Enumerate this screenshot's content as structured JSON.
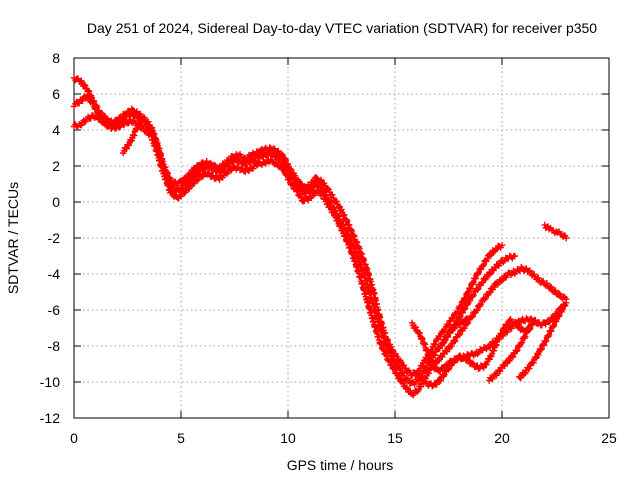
{
  "chart_data": {
    "type": "scatter",
    "title": "Day 251 of 2024, Sidereal Day-to-day VTEC variation (SDTVAR) for receiver p350",
    "xlabel": "GPS time / hours",
    "ylabel": "SDTVAR / TECUs",
    "xlim": [
      0,
      25
    ],
    "ylim": [
      -12,
      8
    ],
    "xticks": [
      0,
      5,
      10,
      15,
      20,
      25
    ],
    "yticks": [
      -12,
      -10,
      -8,
      -6,
      -4,
      -2,
      0,
      2,
      4,
      6,
      8
    ],
    "grid": true,
    "marker": "plus",
    "color": "#ff0000",
    "series": [
      {
        "x": [
          0.0,
          0.3,
          0.6,
          0.9,
          1.2,
          1.5,
          1.8,
          2.1,
          2.4,
          2.7,
          3.0,
          3.3,
          3.6,
          3.9,
          4.2,
          4.5,
          4.8,
          5.0,
          5.3,
          5.6,
          5.9,
          6.2,
          6.5,
          6.8,
          7.1,
          7.4,
          7.7,
          8.0,
          8.3,
          8.6,
          8.9,
          9.2,
          9.5,
          9.8,
          10.1,
          10.4,
          10.7,
          11.0,
          11.3,
          11.6,
          11.9,
          12.2,
          12.5,
          12.8,
          13.1,
          13.4,
          13.7,
          14.0,
          14.3,
          14.6,
          14.9,
          15.2,
          15.5,
          15.8,
          16.1,
          16.4,
          16.7,
          17.0,
          17.3,
          17.6,
          17.9,
          18.2,
          18.5,
          18.8,
          19.1,
          19.4,
          19.7,
          20.0
        ],
        "y": [
          6.9,
          6.7,
          6.3,
          5.6,
          5.0,
          4.6,
          4.4,
          4.6,
          4.9,
          5.1,
          4.9,
          4.6,
          4.2,
          3.2,
          2.0,
          1.2,
          1.0,
          1.1,
          1.4,
          1.8,
          2.1,
          2.2,
          2.0,
          1.9,
          2.2,
          2.5,
          2.6,
          2.4,
          2.6,
          2.8,
          2.9,
          3.0,
          2.8,
          2.5,
          1.8,
          1.3,
          0.8,
          0.9,
          1.3,
          1.1,
          0.6,
          0.1,
          -0.5,
          -1.2,
          -2.0,
          -2.8,
          -3.8,
          -5.0,
          -6.5,
          -7.6,
          -8.3,
          -8.8,
          -9.3,
          -9.6,
          -9.4,
          -8.8,
          -8.2,
          -7.6,
          -7.1,
          -6.6,
          -6.1,
          -5.5,
          -4.8,
          -4.1,
          -3.5,
          -3.0,
          -2.6,
          -2.4
        ]
      },
      {
        "x": [
          0.0,
          0.3,
          0.6,
          0.9,
          1.2,
          1.5,
          1.8,
          2.1,
          2.4,
          2.7,
          3.0,
          3.3,
          3.6,
          3.9,
          4.2,
          4.5,
          4.8,
          5.0,
          5.3,
          5.6,
          5.9,
          6.2,
          6.5,
          6.8,
          7.1,
          7.4,
          7.7,
          8.0,
          8.3,
          8.6,
          8.9,
          9.2,
          9.5,
          9.8,
          10.1,
          10.4,
          10.7,
          11.0,
          11.3,
          11.6,
          11.9,
          12.2,
          12.5,
          12.8,
          13.1,
          13.4,
          13.7,
          14.0,
          14.3,
          14.6,
          14.9,
          15.2,
          15.5,
          15.8,
          16.1,
          16.4,
          16.7,
          17.0,
          17.3,
          17.6,
          17.9,
          18.2,
          18.5,
          18.8,
          19.1,
          19.4,
          19.7,
          20.0,
          20.3,
          20.6
        ],
        "y": [
          5.4,
          5.6,
          5.9,
          5.4,
          4.8,
          4.5,
          4.3,
          4.5,
          4.8,
          4.9,
          4.7,
          4.4,
          4.0,
          3.0,
          1.8,
          0.9,
          0.6,
          0.8,
          1.1,
          1.5,
          1.8,
          2.0,
          1.8,
          1.7,
          2.0,
          2.3,
          2.3,
          2.1,
          2.3,
          2.5,
          2.6,
          2.7,
          2.5,
          2.2,
          1.5,
          1.0,
          0.5,
          0.6,
          1.0,
          0.7,
          0.1,
          -0.5,
          -1.1,
          -1.8,
          -2.6,
          -3.5,
          -4.6,
          -5.8,
          -7.0,
          -8.0,
          -8.7,
          -9.3,
          -9.8,
          -10.1,
          -9.9,
          -9.3,
          -8.7,
          -8.2,
          -7.7,
          -7.2,
          -6.6,
          -6.0,
          -5.4,
          -4.9,
          -4.4,
          -4.0,
          -3.6,
          -3.3,
          -3.1,
          -3.0
        ]
      },
      {
        "x": [
          0.0,
          0.3,
          0.6,
          0.9,
          1.2,
          1.5,
          1.8,
          2.1,
          2.4,
          2.7,
          3.0,
          3.3,
          3.6,
          3.9,
          4.2,
          4.5,
          4.8,
          5.0,
          5.3,
          5.6,
          5.9,
          6.2,
          6.5,
          6.8,
          7.1,
          7.4,
          7.7,
          8.0,
          8.3,
          8.6,
          8.9,
          9.2,
          9.5,
          9.8,
          10.1,
          10.4,
          10.7,
          11.0,
          11.3,
          11.6,
          11.9,
          12.2,
          12.5,
          12.8,
          13.1,
          13.4,
          13.7,
          14.0,
          14.3,
          14.6,
          14.9,
          15.2,
          15.5,
          15.8,
          16.1,
          16.4,
          16.7,
          17.0,
          17.3,
          17.6,
          17.9,
          18.2,
          18.5,
          18.8,
          19.1,
          19.4,
          19.7,
          20.0,
          20.3,
          20.6,
          20.9,
          21.2,
          21.5,
          21.8,
          22.1,
          22.4,
          22.7,
          23.0
        ],
        "y": [
          4.2,
          4.3,
          4.6,
          4.8,
          4.6,
          4.3,
          4.1,
          4.2,
          4.4,
          4.5,
          4.3,
          4.0,
          3.7,
          2.7,
          1.5,
          0.6,
          0.2,
          0.4,
          0.7,
          1.1,
          1.4,
          1.6,
          1.4,
          1.3,
          1.6,
          1.9,
          1.9,
          1.7,
          1.9,
          2.1,
          2.2,
          2.3,
          2.1,
          1.8,
          1.1,
          0.6,
          0.1,
          0.2,
          0.6,
          0.4,
          -0.2,
          -0.8,
          -1.5,
          -2.3,
          -3.2,
          -4.3,
          -5.5,
          -6.7,
          -7.8,
          -8.6,
          -9.2,
          -9.8,
          -10.3,
          -10.7,
          -10.4,
          -9.8,
          -9.2,
          -8.8,
          -8.4,
          -8.0,
          -7.5,
          -7.0,
          -6.5,
          -6.0,
          -5.5,
          -5.0,
          -4.6,
          -4.3,
          -4.0,
          -3.9,
          -3.7,
          -3.8,
          -4.1,
          -4.4,
          -4.6,
          -4.9,
          -5.2,
          -5.4
        ]
      },
      {
        "x": [
          15.8,
          16.1,
          16.4,
          16.7,
          17.0,
          17.3,
          17.6,
          17.9,
          18.2,
          18.5,
          18.8,
          19.1,
          19.4,
          19.7,
          20.0,
          20.3,
          20.6,
          20.9,
          21.2,
          21.5,
          21.8,
          22.1,
          22.4,
          22.7,
          23.0
        ],
        "y": [
          -6.8,
          -7.2,
          -8.0,
          -9.0,
          -9.4,
          -9.2,
          -8.9,
          -8.7,
          -8.6,
          -8.5,
          -8.4,
          -8.2,
          -8.0,
          -7.7,
          -7.4,
          -7.1,
          -6.8,
          -6.6,
          -6.5,
          -6.6,
          -6.8,
          -6.7,
          -6.4,
          -6.0,
          -5.6
        ]
      },
      {
        "x": [
          15.9,
          16.2,
          16.5,
          16.8,
          17.1,
          17.4,
          17.7,
          18.0,
          18.3,
          18.6,
          18.9,
          19.2,
          19.5,
          19.8,
          20.1,
          20.4,
          20.7,
          21.0,
          21.3
        ],
        "y": [
          -9.5,
          -9.8,
          -10.1,
          -10.2,
          -9.9,
          -9.4,
          -8.9,
          -8.6,
          -8.7,
          -9.0,
          -9.2,
          -9.1,
          -8.5,
          -7.7,
          -7.0,
          -6.6,
          -6.8,
          -7.2,
          -7.0
        ]
      },
      {
        "x": [
          17.2,
          17.5,
          17.8,
          18.1,
          18.4
        ],
        "y": [
          -7.9,
          -7.3,
          -6.9,
          -6.7,
          -6.5
        ]
      },
      {
        "x": [
          19.4,
          19.7,
          20.0,
          20.3,
          20.6,
          20.9,
          21.2,
          21.5
        ],
        "y": [
          -9.9,
          -9.6,
          -9.2,
          -8.8,
          -8.4,
          -7.8,
          -7.2,
          -6.6
        ]
      },
      {
        "x": [
          20.8,
          21.1,
          21.4,
          21.7,
          22.0,
          22.3,
          22.6,
          22.9
        ],
        "y": [
          -9.8,
          -9.4,
          -9.0,
          -8.4,
          -7.8,
          -7.1,
          -6.4,
          -5.8
        ]
      },
      {
        "x": [
          22.0,
          22.2,
          22.4,
          22.6,
          22.8,
          23.0
        ],
        "y": [
          -1.3,
          -1.5,
          -1.6,
          -1.7,
          -1.8,
          -2.0
        ]
      },
      {
        "x": [
          2.3,
          2.5,
          2.7,
          2.9,
          3.1
        ],
        "y": [
          2.8,
          3.1,
          3.5,
          4.0,
          4.5
        ]
      }
    ]
  }
}
